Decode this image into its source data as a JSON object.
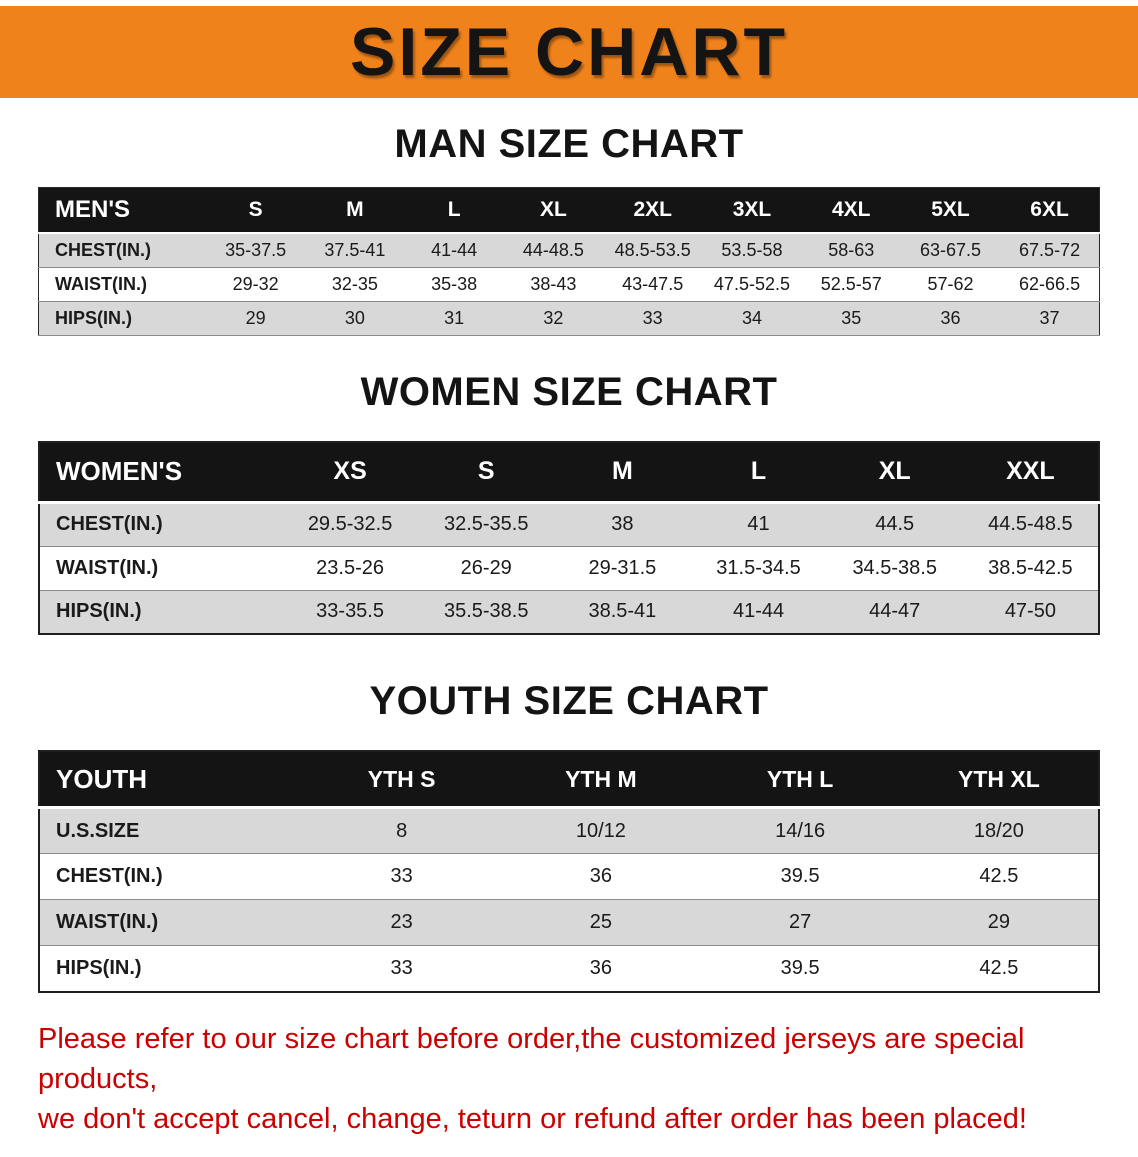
{
  "banner": {
    "title": "SIZE CHART"
  },
  "sections": [
    {
      "heading": "MAN SIZE CHART",
      "table": {
        "header": [
          "MEN'S",
          "S",
          "M",
          "L",
          "XL",
          "2XL",
          "3XL",
          "4XL",
          "5XL",
          "6XL"
        ],
        "rows": [
          [
            "CHEST(IN.)",
            "35-37.5",
            "37.5-41",
            "41-44",
            "44-48.5",
            "48.5-53.5",
            "53.5-58",
            "58-63",
            "63-67.5",
            "67.5-72"
          ],
          [
            "WAIST(IN.)",
            "29-32",
            "32-35",
            "35-38",
            "38-43",
            "43-47.5",
            "47.5-52.5",
            "52.5-57",
            "57-62",
            "62-66.5"
          ],
          [
            "HIPS(IN.)",
            "29",
            "30",
            "31",
            "32",
            "33",
            "34",
            "35",
            "36",
            "37"
          ]
        ]
      }
    },
    {
      "heading": "WOMEN SIZE CHART",
      "table": {
        "header": [
          "WOMEN'S",
          "XS",
          "S",
          "M",
          "L",
          "XL",
          "XXL"
        ],
        "rows": [
          [
            "CHEST(IN.)",
            "29.5-32.5",
            "32.5-35.5",
            "38",
            "41",
            "44.5",
            "44.5-48.5"
          ],
          [
            "WAIST(IN.)",
            "23.5-26",
            "26-29",
            "29-31.5",
            "31.5-34.5",
            "34.5-38.5",
            "38.5-42.5"
          ],
          [
            "HIPS(IN.)",
            "33-35.5",
            "35.5-38.5",
            "38.5-41",
            "41-44",
            "44-47",
            "47-50"
          ]
        ]
      }
    },
    {
      "heading": "YOUTH SIZE CHART",
      "table": {
        "header": [
          "YOUTH",
          "YTH S",
          "YTH M",
          "YTH L",
          "YTH XL"
        ],
        "rows": [
          [
            "U.S.SIZE",
            "8",
            "10/12",
            "14/16",
            "18/20"
          ],
          [
            "CHEST(IN.)",
            "33",
            "36",
            "39.5",
            "42.5"
          ],
          [
            "WAIST(IN.)",
            "23",
            "25",
            "27",
            "29"
          ],
          [
            "HIPS(IN.)",
            "33",
            "36",
            "39.5",
            "42.5"
          ]
        ]
      }
    }
  ],
  "disclaimer": {
    "line1": "Please refer to our size chart before order,the customized jerseys are special products,",
    "line2": "we don't accept cancel, change, teturn or refund after order has been placed!"
  },
  "colors": {
    "banner_bg": "#F0821C",
    "header_bg": "#141414",
    "row_alt_bg": "#D8D8D8",
    "disclaimer_red": "#CC0000"
  }
}
